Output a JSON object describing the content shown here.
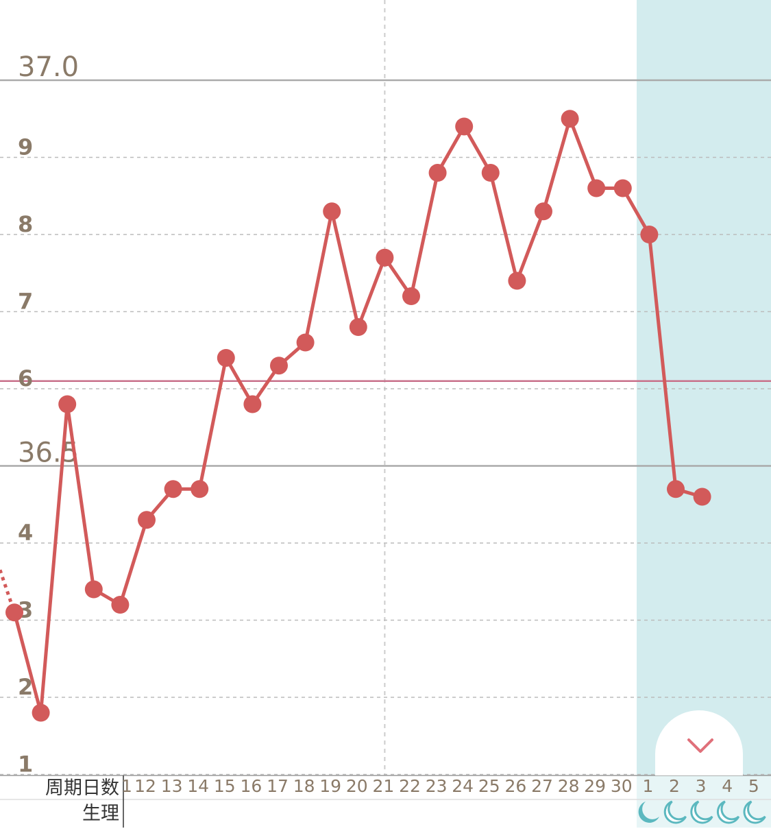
{
  "chart_data": {
    "type": "line",
    "title": "",
    "xlabel": "",
    "ylabel": "",
    "ylim": [
      36.11,
      37.07
    ],
    "y_major_ticks": [
      {
        "value": 37.0,
        "label": "37.0"
      },
      {
        "value": 36.5,
        "label": "36.5"
      }
    ],
    "y_minor_ticks": [
      {
        "value": 36.9,
        "label": "9"
      },
      {
        "value": 36.8,
        "label": "8"
      },
      {
        "value": 36.7,
        "label": "7"
      },
      {
        "value": 36.6,
        "label": "6"
      },
      {
        "value": 36.4,
        "label": "4"
      },
      {
        "value": 36.3,
        "label": "3"
      },
      {
        "value": 36.2,
        "label": "2"
      },
      {
        "value": 36.1,
        "label": "1"
      }
    ],
    "reference_line": {
      "value": 36.61,
      "color": "#c8708a"
    },
    "row_labels": {
      "cycle_day": "周期日数",
      "period": "生理"
    },
    "x_tick_labels": [
      "1",
      "12",
      "13",
      "14",
      "15",
      "16",
      "17",
      "18",
      "19",
      "20",
      "21",
      "22",
      "23",
      "24",
      "25",
      "26",
      "27",
      "28",
      "29",
      "30",
      "1",
      "2",
      "3",
      "4",
      "5"
    ],
    "period_start_index": 20,
    "period_icon": "crescent-moon-icon",
    "period_icon_count": 5,
    "period_band_color": "#d3ecee",
    "series": [
      {
        "color": "#d25a5a",
        "values": [
          36.31,
          36.18,
          36.58,
          36.34,
          36.32,
          36.43,
          36.47,
          36.47,
          36.64,
          36.58,
          36.63,
          36.66,
          36.83,
          36.68,
          36.77,
          36.72,
          36.88,
          36.94,
          36.88,
          36.74,
          36.83,
          36.95,
          36.86,
          36.86,
          36.8,
          36.47,
          36.46
        ]
      }
    ],
    "leading_dotted_segment": true,
    "scroll_button_icon": "chevron-down-icon"
  }
}
